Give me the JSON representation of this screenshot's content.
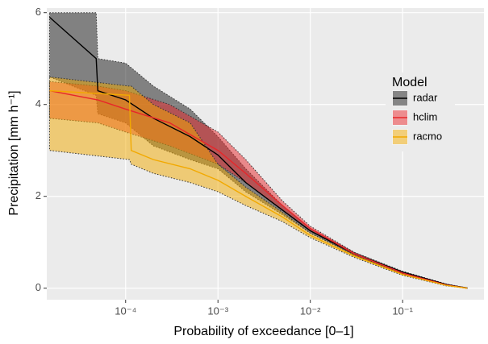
{
  "chart_data": {
    "type": "line",
    "x_label": "Probability of exceedance [0–1]",
    "y_label": "Precipitation [mm h⁻¹]",
    "xscale": "log",
    "xlim": [
      1.4e-05,
      0.76
    ],
    "ylim": [
      -0.25,
      6.1
    ],
    "xticks": [
      {
        "value": 0.0001,
        "label": "10⁻⁴"
      },
      {
        "value": 0.001,
        "label": "10⁻³"
      },
      {
        "value": 0.01,
        "label": "10⁻²"
      },
      {
        "value": 0.1,
        "label": "10⁻¹"
      }
    ],
    "yticks": [
      0,
      2,
      4,
      6
    ],
    "grid": true,
    "legend_title": "Model",
    "legend_position": "right",
    "series": [
      {
        "name": "radar",
        "color": "#000000",
        "fill_opacity": 0.45,
        "x": [
          1.5e-05,
          4.8e-05,
          5e-05,
          0.0001,
          0.0002,
          0.0005,
          0.001,
          0.002,
          0.005,
          0.01,
          0.03,
          0.1,
          0.3,
          0.5
        ],
        "values": [
          5.9,
          5.0,
          4.3,
          4.1,
          3.7,
          3.3,
          2.9,
          2.3,
          1.7,
          1.25,
          0.75,
          0.35,
          0.08,
          0.0
        ],
        "lower": [
          4.6,
          4.2,
          3.8,
          3.6,
          3.1,
          2.8,
          2.6,
          2.1,
          1.6,
          1.2,
          0.72,
          0.33,
          0.07,
          0.0
        ],
        "upper": [
          6.0,
          6.0,
          5.0,
          4.9,
          4.4,
          3.9,
          3.3,
          2.6,
          1.8,
          1.3,
          0.78,
          0.37,
          0.09,
          0.01
        ]
      },
      {
        "name": "hclim",
        "color": "#e8262a",
        "fill_opacity": 0.5,
        "x": [
          1.5e-05,
          5e-05,
          0.0001,
          0.0003,
          0.001,
          0.002,
          0.005,
          0.01,
          0.03,
          0.1,
          0.3,
          0.5
        ],
        "values": [
          4.3,
          4.1,
          3.9,
          3.6,
          3.0,
          2.5,
          1.8,
          1.3,
          0.75,
          0.33,
          0.07,
          0.0
        ],
        "lower": [
          3.7,
          3.6,
          3.4,
          3.1,
          2.7,
          2.3,
          1.7,
          1.25,
          0.72,
          0.31,
          0.06,
          0.0
        ],
        "upper": [
          4.5,
          4.4,
          4.3,
          4.0,
          3.4,
          2.8,
          1.9,
          1.35,
          0.78,
          0.35,
          0.08,
          0.01
        ]
      },
      {
        "name": "racmo",
        "color": "#f2a900",
        "fill_opacity": 0.5,
        "x": [
          1.5e-05,
          0.00011,
          0.000115,
          0.0002,
          0.0005,
          0.001,
          0.002,
          0.005,
          0.01,
          0.03,
          0.1,
          0.3,
          0.5
        ],
        "values": [
          4.3,
          4.2,
          3.0,
          2.8,
          2.6,
          2.35,
          2.0,
          1.55,
          1.15,
          0.7,
          0.3,
          0.06,
          0.0
        ],
        "lower": [
          3.0,
          2.8,
          2.7,
          2.5,
          2.3,
          2.1,
          1.8,
          1.45,
          1.1,
          0.67,
          0.28,
          0.05,
          0.0
        ],
        "upper": [
          4.6,
          4.4,
          4.4,
          4.0,
          3.6,
          2.7,
          2.2,
          1.65,
          1.2,
          0.73,
          0.32,
          0.07,
          0.01
        ]
      }
    ]
  }
}
